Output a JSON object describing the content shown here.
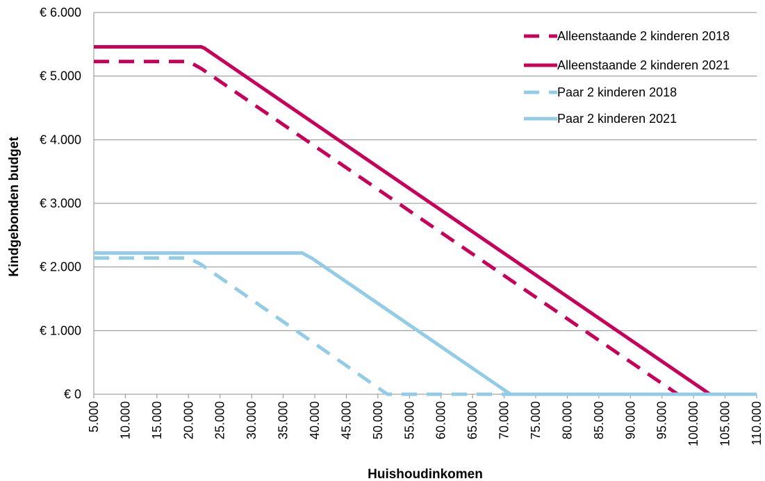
{
  "chart_data": {
    "type": "line",
    "title": "",
    "xlabel": "Huishoudinkomen",
    "ylabel": "Kindgebonden budget",
    "xlim": [
      5000,
      110000
    ],
    "ylim": [
      0,
      6000
    ],
    "grid": "horizontal",
    "legend_position": "top-right",
    "x_tick_labels": [
      "5.000",
      "10.000",
      "15.000",
      "20.000",
      "25.000",
      "30.000",
      "35.000",
      "40.000",
      "45.000",
      "50.000",
      "55.000",
      "60.000",
      "65.000",
      "70.000",
      "75.000",
      "80.000",
      "85.000",
      "90.000",
      "95.000",
      "100.000",
      "105.000",
      "110.000"
    ],
    "y_tick_labels": [
      "€ 0",
      "€ 1.000",
      "€ 2.000",
      "€ 3.000",
      "€ 4.000",
      "€ 5.000",
      "€ 6.000"
    ],
    "series": [
      {
        "name": "Alleenstaande 2 kinderen 2018",
        "color": "#C8005A",
        "dash": "dashed",
        "points": [
          [
            5000,
            5230
          ],
          [
            20000,
            5230
          ],
          [
            22000,
            5120
          ],
          [
            97500,
            0
          ],
          [
            110000,
            0
          ]
        ]
      },
      {
        "name": "Alleenstaande 2 kinderen 2021",
        "color": "#C8005A",
        "dash": "solid",
        "points": [
          [
            5000,
            5460
          ],
          [
            22000,
            5460
          ],
          [
            22500,
            5440
          ],
          [
            102600,
            0
          ],
          [
            110000,
            0
          ]
        ]
      },
      {
        "name": "Paar 2 kinderen 2018",
        "color": "#93CCE6",
        "dash": "dashed",
        "points": [
          [
            5000,
            2140
          ],
          [
            20000,
            2140
          ],
          [
            22000,
            2040
          ],
          [
            51500,
            0
          ],
          [
            110000,
            0
          ]
        ]
      },
      {
        "name": "Paar 2 kinderen 2021",
        "color": "#93CCE6",
        "dash": "solid",
        "points": [
          [
            5000,
            2220
          ],
          [
            38000,
            2220
          ],
          [
            39500,
            2140
          ],
          [
            71000,
            0
          ],
          [
            110000,
            0
          ]
        ]
      }
    ]
  }
}
